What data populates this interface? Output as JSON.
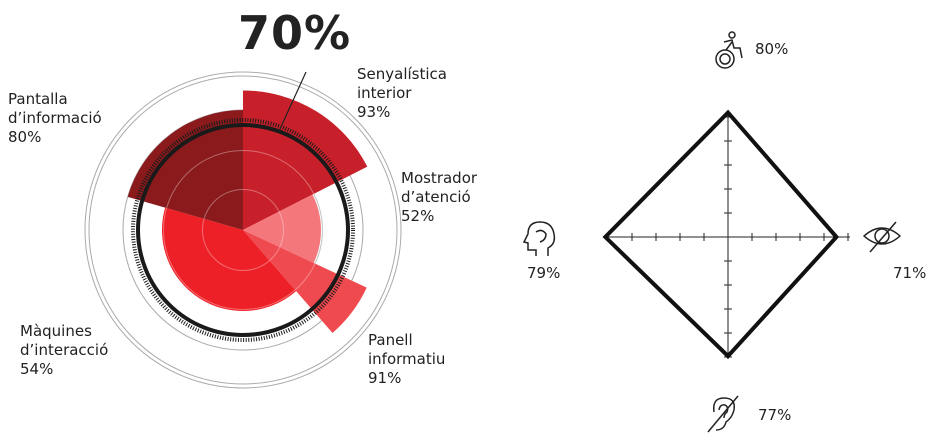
{
  "chart_data": [
    {
      "type": "polar_area",
      "title": "70%",
      "overall": {
        "value": 70,
        "label": "70%"
      },
      "rlim": [
        0,
        100
      ],
      "categories": [
        "Senyalística interior",
        "Mostrador d’atenció",
        "Panell informatiu",
        "Màquines d’interacció",
        "Pantalla d’informació"
      ],
      "values": [
        93,
        52,
        91,
        54,
        80
      ],
      "value_labels": [
        "93%",
        "52%",
        "91%",
        "54%",
        "80%"
      ],
      "colors": [
        "#c8202a",
        "#f4787b",
        "#ef4a50",
        "#ee2027",
        "#8b1a1c"
      ]
    },
    {
      "type": "radar",
      "rlim": [
        10,
        100
      ],
      "values": [
        80,
        71,
        77,
        79
      ],
      "value_labels": [
        "80%",
        "71%",
        "77%",
        "79%"
      ],
      "color": "#111111"
    }
  ]
}
